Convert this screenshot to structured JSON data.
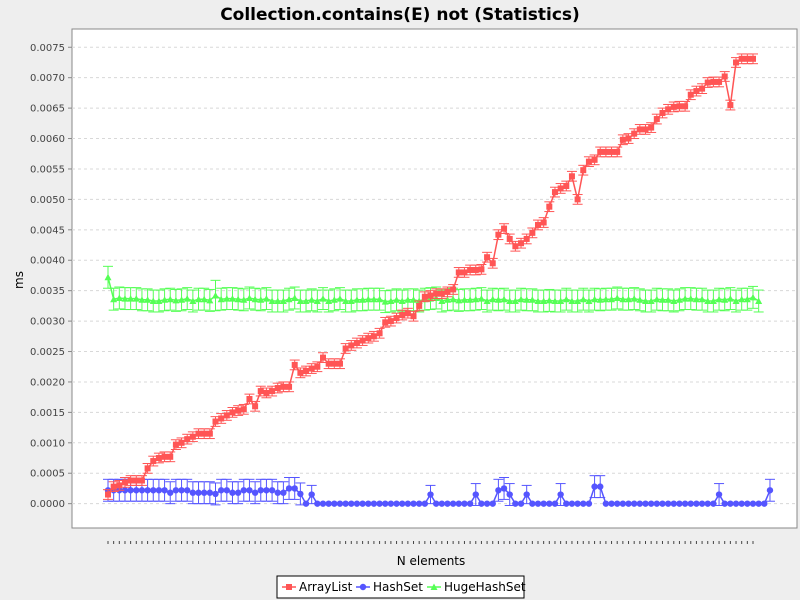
{
  "chart_data": {
    "type": "line",
    "title": "Collection.contains(E) not (Statistics)",
    "xlabel": "N elements",
    "ylabel": "ms",
    "ylim": [
      -0.0004,
      0.0078
    ],
    "yticks": [
      "0.0000",
      "0.0005",
      "0.0010",
      "0.0015",
      "0.0020",
      "0.0025",
      "0.0030",
      "0.0035",
      "0.0040",
      "0.0045",
      "0.0050",
      "0.0055",
      "0.0060",
      "0.0065",
      "0.0070",
      "0.0075"
    ],
    "grid": true,
    "legend_position": "bottom",
    "x_tick_labels_hidden": true,
    "series": [
      {
        "name": "ArrayList",
        "color": "#ff5555",
        "marker": "square",
        "values": [
          0.00015,
          0.00028,
          0.0003,
          0.00035,
          0.00038,
          0.00038,
          0.00038,
          0.00058,
          0.0007,
          0.00075,
          0.00077,
          0.00077,
          0.00097,
          0.001,
          0.00106,
          0.0011,
          0.00115,
          0.00115,
          0.00115,
          0.00135,
          0.0014,
          0.00145,
          0.0015,
          0.00153,
          0.00155,
          0.00172,
          0.0016,
          0.00185,
          0.00182,
          0.00185,
          0.0019,
          0.00192,
          0.00192,
          0.00228,
          0.00215,
          0.00218,
          0.00222,
          0.00225,
          0.0024,
          0.0023,
          0.0023,
          0.0023,
          0.00255,
          0.0026,
          0.00264,
          0.00268,
          0.00272,
          0.00275,
          0.0028,
          0.00298,
          0.003,
          0.00305,
          0.0031,
          0.00313,
          0.00308,
          0.00325,
          0.0034,
          0.00342,
          0.00345,
          0.00345,
          0.00348,
          0.00352,
          0.0038,
          0.0038,
          0.00384,
          0.00384,
          0.00385,
          0.00405,
          0.00395,
          0.00442,
          0.00452,
          0.00435,
          0.00423,
          0.00428,
          0.00435,
          0.00445,
          0.00458,
          0.00462,
          0.00488,
          0.00512,
          0.00518,
          0.00522,
          0.00538,
          0.005,
          0.00548,
          0.00562,
          0.00565,
          0.00578,
          0.00578,
          0.00578,
          0.00578,
          0.00598,
          0.006,
          0.00608,
          0.00615,
          0.00615,
          0.00618,
          0.00632,
          0.00642,
          0.00648,
          0.00652,
          0.00653,
          0.00653,
          0.00672,
          0.00678,
          0.00682,
          0.00692,
          0.00693,
          0.00693,
          0.00702,
          0.00655,
          0.00725,
          0.00731,
          0.00731,
          0.00731
        ],
        "errors": [
          8e-05,
          8e-05,
          8e-05,
          8e-05,
          8e-05,
          8e-05,
          8e-05,
          8e-05,
          8e-05,
          8e-05,
          8e-05,
          8e-05,
          8e-05,
          8e-05,
          8e-05,
          8e-05,
          8e-05,
          8e-05,
          8e-05,
          8e-05,
          8e-05,
          8e-05,
          8e-05,
          8e-05,
          8e-05,
          8e-05,
          8e-05,
          8e-05,
          8e-05,
          8e-05,
          8e-05,
          8e-05,
          8e-05,
          8e-05,
          8e-05,
          8e-05,
          8e-05,
          8e-05,
          8e-05,
          8e-05,
          8e-05,
          8e-05,
          8e-05,
          8e-05,
          8e-05,
          8e-05,
          8e-05,
          8e-05,
          8e-05,
          8e-05,
          8e-05,
          8e-05,
          8e-05,
          8e-05,
          8e-05,
          8e-05,
          8e-05,
          8e-05,
          8e-05,
          8e-05,
          8e-05,
          8e-05,
          8e-05,
          8e-05,
          8e-05,
          8e-05,
          8e-05,
          8e-05,
          8e-05,
          8e-05,
          8e-05,
          8e-05,
          8e-05,
          8e-05,
          8e-05,
          8e-05,
          8e-05,
          8e-05,
          8e-05,
          8e-05,
          8e-05,
          8e-05,
          8e-05,
          8e-05,
          8e-05,
          8e-05,
          8e-05,
          8e-05,
          8e-05,
          8e-05,
          8e-05,
          8e-05,
          8e-05,
          8e-05,
          8e-05,
          8e-05,
          8e-05,
          8e-05,
          8e-05,
          8e-05,
          8e-05,
          8e-05,
          8e-05,
          8e-05,
          8e-05,
          8e-05,
          8e-05,
          8e-05,
          8e-05,
          8e-05,
          8e-05,
          8e-05,
          8e-05,
          8e-05,
          8e-05
        ]
      },
      {
        "name": "HashSet",
        "color": "#5555ff",
        "marker": "circle",
        "values": [
          0.00022,
          0.00022,
          0.00022,
          0.00022,
          0.00022,
          0.00022,
          0.00022,
          0.00022,
          0.00022,
          0.00022,
          0.00022,
          0.00018,
          0.00022,
          0.00022,
          0.00022,
          0.00018,
          0.00018,
          0.00018,
          0.00018,
          0.00016,
          0.00022,
          0.00022,
          0.00018,
          0.00018,
          0.00022,
          0.00022,
          0.00018,
          0.00022,
          0.00022,
          0.00022,
          0.00018,
          0.00018,
          0.00025,
          0.00025,
          0.00016,
          0.0,
          0.00015,
          0.0,
          0.0,
          0.0,
          0.0,
          0.0,
          0.0,
          0.0,
          0.0,
          0.0,
          0.0,
          0.0,
          0.0,
          0.0,
          0.0,
          0.0,
          0.0,
          0.0,
          0.0,
          0.0,
          0.0,
          0.00015,
          0.0,
          0.0,
          0.0,
          0.0,
          0.0,
          0.0,
          0.0,
          0.00015,
          0.0,
          0.0,
          0.0,
          0.00022,
          0.00025,
          0.00015,
          0.0,
          0.0,
          0.00015,
          0.0,
          0.0,
          0.0,
          0.0,
          0.0,
          0.00015,
          0.0,
          0.0,
          0.0,
          0.0,
          0.0,
          0.00028,
          0.00028,
          0.0,
          0.0,
          0.0,
          0.0,
          0.0,
          0.0,
          0.0,
          0.0,
          0.0,
          0.0,
          0.0,
          0.0,
          0.0,
          0.0,
          0.0,
          0.0,
          0.0,
          0.0,
          0.0,
          0.0,
          0.00015,
          0.0,
          0.0,
          0.0,
          0.0,
          0.0,
          0.0,
          0.0,
          0.0,
          0.00022
        ],
        "errors": [
          0.00018,
          0.00018,
          0.00018,
          0.00018,
          0.00018,
          0.00018,
          0.00018,
          0.00018,
          0.00018,
          0.00018,
          0.00018,
          0.00018,
          0.00018,
          0.00018,
          0.00018,
          0.00018,
          0.00018,
          0.00018,
          0.00018,
          0.00018,
          0.00018,
          0.00018,
          0.00018,
          0.00018,
          0.00018,
          0.00018,
          0.00018,
          0.00018,
          0.00018,
          0.00018,
          0.00018,
          0.00018,
          0.00018,
          0.00018,
          0.00018,
          0.0,
          0.00015,
          0.0,
          0.0,
          0.0,
          0.0,
          0.0,
          0.0,
          0.0,
          0.0,
          0.0,
          0.0,
          0.0,
          0.0,
          0.0,
          0.0,
          0.0,
          0.0,
          0.0,
          0.0,
          0.0,
          0.0,
          0.00015,
          0.0,
          0.0,
          0.0,
          0.0,
          0.0,
          0.0,
          0.0,
          0.00018,
          0.0,
          0.0,
          0.0,
          0.00018,
          0.00018,
          0.00018,
          0.0,
          0.0,
          0.00015,
          0.0,
          0.0,
          0.0,
          0.0,
          0.0,
          0.00018,
          0.0,
          0.0,
          0.0,
          0.0,
          0.0,
          0.00018,
          0.00018,
          0.0,
          0.0,
          0.0,
          0.0,
          0.0,
          0.0,
          0.0,
          0.0,
          0.0,
          0.0,
          0.0,
          0.0,
          0.0,
          0.0,
          0.0,
          0.0,
          0.0,
          0.0,
          0.0,
          0.0,
          0.00018,
          0.0,
          0.0,
          0.0,
          0.0,
          0.0,
          0.0,
          0.0,
          0.0,
          0.00018
        ]
      },
      {
        "name": "HugeHashSet",
        "color": "#55ff55",
        "marker": "triangle",
        "values": [
          0.00372,
          0.00336,
          0.00338,
          0.00337,
          0.00337,
          0.00337,
          0.00335,
          0.00335,
          0.00333,
          0.00333,
          0.00335,
          0.00336,
          0.00334,
          0.00335,
          0.00337,
          0.00333,
          0.00336,
          0.00336,
          0.00334,
          0.00342,
          0.00336,
          0.00337,
          0.00337,
          0.00336,
          0.00335,
          0.00338,
          0.00336,
          0.00335,
          0.00337,
          0.00333,
          0.00333,
          0.00333,
          0.00336,
          0.00338,
          0.00333,
          0.00333,
          0.00335,
          0.00333,
          0.00337,
          0.00333,
          0.00335,
          0.00337,
          0.00333,
          0.00333,
          0.00335,
          0.00335,
          0.00336,
          0.00336,
          0.00336,
          0.00332,
          0.00333,
          0.00335,
          0.00333,
          0.00335,
          0.00335,
          0.00333,
          0.00336,
          0.00337,
          0.00338,
          0.00333,
          0.00335,
          0.00336,
          0.00334,
          0.00335,
          0.00335,
          0.00336,
          0.00337,
          0.00333,
          0.00336,
          0.00335,
          0.00336,
          0.00333,
          0.00333,
          0.00336,
          0.00335,
          0.00335,
          0.00333,
          0.00333,
          0.00334,
          0.00333,
          0.00333,
          0.00336,
          0.00333,
          0.00333,
          0.00336,
          0.00333,
          0.00336,
          0.00335,
          0.00336,
          0.00336,
          0.00338,
          0.00336,
          0.00336,
          0.00337,
          0.00335,
          0.00333,
          0.00333,
          0.00336,
          0.00335,
          0.00335,
          0.00333,
          0.00335,
          0.00337,
          0.00337,
          0.00336,
          0.00336,
          0.00333,
          0.00333,
          0.00336,
          0.00335,
          0.00337,
          0.00333,
          0.00336,
          0.00336,
          0.00339,
          0.00333
        ],
        "errors": [
          0.00018,
          0.00018,
          0.00018,
          0.00018,
          0.00018,
          0.00018,
          0.00018,
          0.00018,
          0.00018,
          0.00018,
          0.00018,
          0.00018,
          0.00018,
          0.00018,
          0.00018,
          0.00018,
          0.00018,
          0.00018,
          0.00018,
          0.00025,
          0.00018,
          0.00018,
          0.00018,
          0.00018,
          0.00018,
          0.00018,
          0.00018,
          0.00018,
          0.00018,
          0.00018,
          0.00018,
          0.00018,
          0.00018,
          0.00018,
          0.00018,
          0.00018,
          0.00018,
          0.00018,
          0.00018,
          0.00018,
          0.00018,
          0.00018,
          0.00018,
          0.00018,
          0.00018,
          0.00018,
          0.00018,
          0.00018,
          0.00018,
          0.00018,
          0.00018,
          0.00018,
          0.00018,
          0.00018,
          0.00018,
          0.00018,
          0.00018,
          0.00018,
          0.00018,
          0.00018,
          0.00018,
          0.00018,
          0.00018,
          0.00018,
          0.00018,
          0.00018,
          0.00018,
          0.00018,
          0.00018,
          0.00018,
          0.00018,
          0.00018,
          0.00018,
          0.00018,
          0.00018,
          0.00018,
          0.00018,
          0.00018,
          0.00018,
          0.00018,
          0.00018,
          0.00018,
          0.00018,
          0.00018,
          0.00018,
          0.00018,
          0.00018,
          0.00018,
          0.00018,
          0.00018,
          0.00018,
          0.00018,
          0.00018,
          0.00018,
          0.00018,
          0.00018,
          0.00018,
          0.00018,
          0.00018,
          0.00018,
          0.00018,
          0.00018,
          0.00018,
          0.00018,
          0.00018,
          0.00018,
          0.00018,
          0.00018,
          0.00018,
          0.00018,
          0.00018,
          0.00018,
          0.00018,
          0.00018,
          0.00018,
          0.00018
        ]
      }
    ]
  }
}
